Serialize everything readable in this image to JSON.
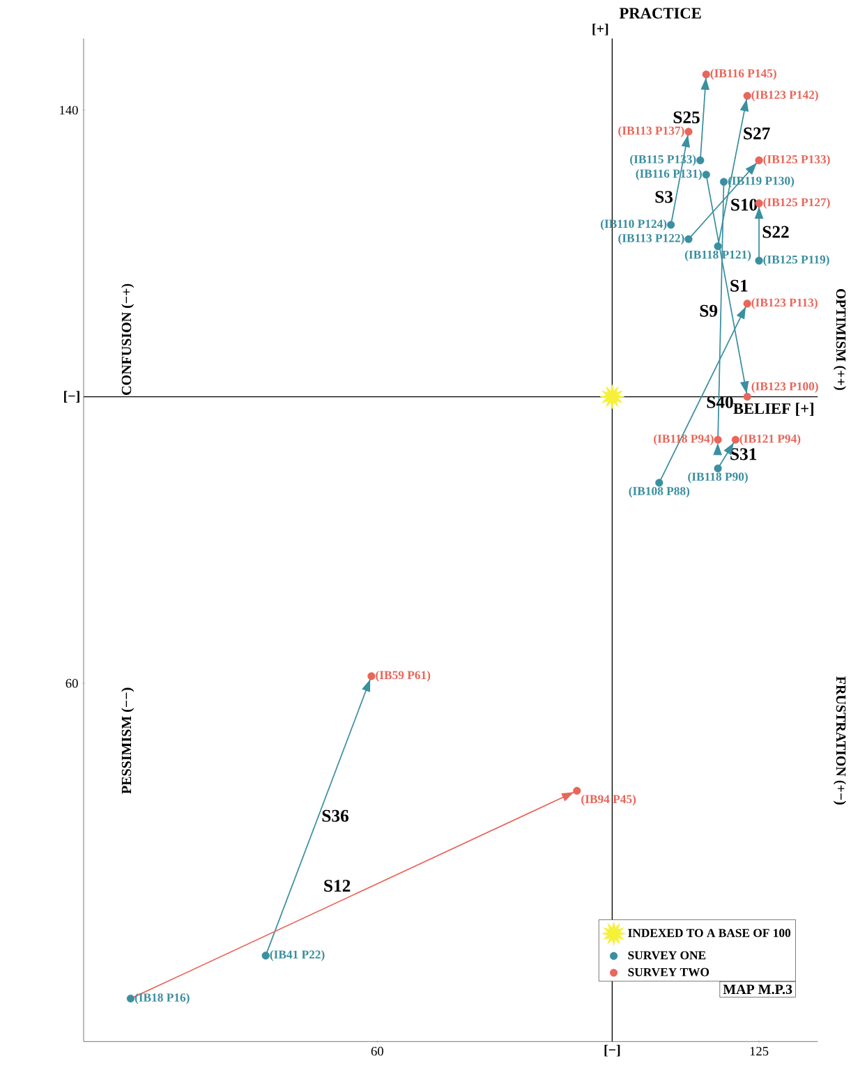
{
  "chart_data": {
    "type": "scatter",
    "xlabel": "BELIEF [+]",
    "ylabel": "PRACTICE",
    "xlim": [
      10,
      135
    ],
    "ylim": [
      10,
      150
    ],
    "xticks": [
      60,
      125
    ],
    "yticks": [
      60,
      140
    ],
    "marker": "circle",
    "legend": "bottom right",
    "grid": false,
    "ref_lines": [
      {
        "axis": "y",
        "value": 100,
        "color": "#000000",
        "label": "[−]"
      },
      {
        "axis": "x",
        "value": 100,
        "color": "#000000",
        "label": "[+]"
      }
    ],
    "series": [
      {
        "name": "INDEXED TO A BASE OF 100",
        "color": "#f5f03a",
        "marker": "star",
        "x": [
          100
        ],
        "values": [
          100
        ]
      },
      {
        "name": "SURVEY ONE",
        "color": "#3a8fa0",
        "x": [
          115,
          116,
          119,
          110,
          113,
          118,
          125,
          108,
          118,
          41,
          18
        ],
        "values": [
          133,
          131,
          130,
          124,
          122,
          121,
          119,
          88,
          90,
          22,
          16
        ]
      },
      {
        "name": "SURVEY TWO",
        "color": "#e8665a",
        "x": [
          116,
          123,
          113,
          125,
          125,
          123,
          123,
          118,
          121,
          59,
          94
        ],
        "values": [
          145,
          142,
          137,
          133,
          127,
          113,
          100,
          94,
          94,
          61,
          45
        ]
      },
      {
        "name": "S25",
        "type": "line",
        "marker": "none",
        "color": "#3a8fa0",
        "x": [
          115,
          116
        ],
        "values": [
          133,
          145
        ]
      },
      {
        "name": "S27",
        "type": "line",
        "marker": "none",
        "color": "#3a8fa0",
        "x": [
          118,
          123
        ],
        "values": [
          121,
          142
        ]
      },
      {
        "name": "S3",
        "type": "line",
        "marker": "none",
        "color": "#3a8fa0",
        "x": [
          110,
          113
        ],
        "values": [
          124,
          137
        ]
      },
      {
        "name": "S10",
        "type": "line",
        "marker": "none",
        "color": "#3a8fa0",
        "x": [
          113,
          125
        ],
        "values": [
          122,
          133
        ]
      },
      {
        "name": "S22",
        "type": "line",
        "marker": "none",
        "color": "#3a8fa0",
        "x": [
          125,
          125
        ],
        "values": [
          119,
          127
        ]
      },
      {
        "name": "S1",
        "type": "line",
        "marker": "none",
        "color": "#3a8fa0",
        "x": [
          116,
          123
        ],
        "values": [
          131,
          100
        ]
      },
      {
        "name": "S9",
        "type": "line",
        "marker": "none",
        "color": "#3a8fa0",
        "x": [
          119,
          118
        ],
        "values": [
          130,
          94
        ]
      },
      {
        "name": "S40",
        "type": "line",
        "marker": "none",
        "color": "#3a8fa0",
        "x": [
          108,
          123
        ],
        "values": [
          88,
          113
        ]
      },
      {
        "name": "S31",
        "type": "line",
        "marker": "none",
        "color": "#3a8fa0",
        "x": [
          118,
          121
        ],
        "values": [
          90,
          94
        ]
      },
      {
        "name": "S36",
        "type": "line",
        "marker": "none",
        "color": "#3a8fa0",
        "x": [
          41,
          59
        ],
        "values": [
          22,
          61
        ]
      },
      {
        "name": "S12",
        "type": "line",
        "marker": "none",
        "color": "#e8665a",
        "x": [
          18,
          94
        ],
        "values": [
          16,
          45
        ]
      }
    ],
    "annotations": [
      {
        "text": "(IB116 P145)",
        "x": 116,
        "y": 145
      },
      {
        "text": "(IB123 P142)",
        "x": 123,
        "y": 142
      },
      {
        "text": "(IB113 P137)",
        "x": 113,
        "y": 137
      },
      {
        "text": "(IB125 P133)",
        "x": 125,
        "y": 133
      },
      {
        "text": "(IB125 P127)",
        "x": 125,
        "y": 127
      },
      {
        "text": "(IB123 P113)",
        "x": 123,
        "y": 113
      },
      {
        "text": "(IB123 P100)",
        "x": 123,
        "y": 100
      },
      {
        "text": "(IB118 P94)",
        "x": 118,
        "y": 94
      },
      {
        "text": "(IB121 P94)",
        "x": 121,
        "y": 94
      },
      {
        "text": "(IB59 P61)",
        "x": 59,
        "y": 61
      },
      {
        "text": "(IB94 P45)",
        "x": 94,
        "y": 45
      },
      {
        "text": "(IB115 P133)",
        "x": 115,
        "y": 133
      },
      {
        "text": "(IB116 P131)",
        "x": 116,
        "y": 131
      },
      {
        "text": "(IB119 P130)",
        "x": 119,
        "y": 130
      },
      {
        "text": "(IB110 P124)",
        "x": 110,
        "y": 124
      },
      {
        "text": "(IB113 P122)",
        "x": 113,
        "y": 122
      },
      {
        "text": "(IB118 P121)",
        "x": 118,
        "y": 121
      },
      {
        "text": "(IB125 P119)",
        "x": 125,
        "y": 119
      },
      {
        "text": "(IB108 P88)",
        "x": 108,
        "y": 88
      },
      {
        "text": "(IB118 P90)",
        "x": 118,
        "y": 90
      },
      {
        "text": "(IB41 P22)",
        "x": 41,
        "y": 22
      },
      {
        "text": "(IB18 P16)",
        "x": 18,
        "y": 16
      },
      "CONFUSION (−+)",
      "OPTIMISM (++)",
      "PESSIMISM (−−)",
      "FRUSTRATION (+−)",
      "[−]",
      "MAP M.P.3"
    ]
  }
}
